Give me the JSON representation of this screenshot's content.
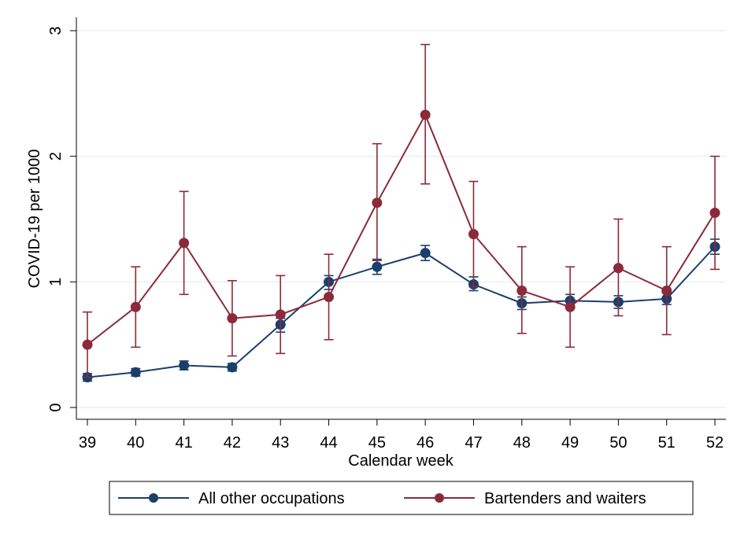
{
  "chart_data": {
    "type": "line",
    "title": "",
    "xlabel": "Calendar week",
    "ylabel": "COVID-19 per 1000",
    "x": [
      39,
      40,
      41,
      42,
      43,
      44,
      45,
      46,
      47,
      48,
      49,
      50,
      51,
      52
    ],
    "xlim": [
      39,
      52
    ],
    "ylim": [
      0,
      3
    ],
    "yticks": [
      0,
      1,
      2,
      3
    ],
    "grid": "horizontal",
    "legend_position": "bottom",
    "series": [
      {
        "name": "All other occupations",
        "color": "#1a3f6b",
        "values": [
          0.24,
          0.28,
          0.335,
          0.32,
          0.66,
          1.0,
          1.12,
          1.23,
          0.98,
          0.83,
          0.85,
          0.84,
          0.865,
          1.28
        ],
        "ci_low": [
          0.21,
          0.25,
          0.3,
          0.29,
          0.6,
          0.94,
          1.06,
          1.17,
          0.93,
          0.78,
          0.8,
          0.79,
          0.82,
          1.22
        ],
        "ci_high": [
          0.27,
          0.31,
          0.37,
          0.35,
          0.71,
          1.05,
          1.18,
          1.29,
          1.04,
          0.88,
          0.9,
          0.89,
          0.91,
          1.34
        ]
      },
      {
        "name": "Bartenders and waiters",
        "color": "#8b2a3a",
        "values": [
          0.5,
          0.8,
          1.31,
          0.71,
          0.74,
          0.88,
          1.63,
          2.33,
          1.38,
          0.93,
          0.8,
          1.11,
          0.93,
          1.55
        ],
        "ci_low": [
          0.24,
          0.48,
          0.9,
          0.41,
          0.43,
          0.54,
          1.17,
          1.78,
          0.96,
          0.59,
          0.48,
          0.73,
          0.58,
          1.1
        ],
        "ci_high": [
          0.76,
          1.12,
          1.72,
          1.01,
          1.05,
          1.22,
          2.1,
          2.89,
          1.8,
          1.28,
          1.12,
          1.5,
          1.28,
          2.0
        ]
      }
    ]
  }
}
